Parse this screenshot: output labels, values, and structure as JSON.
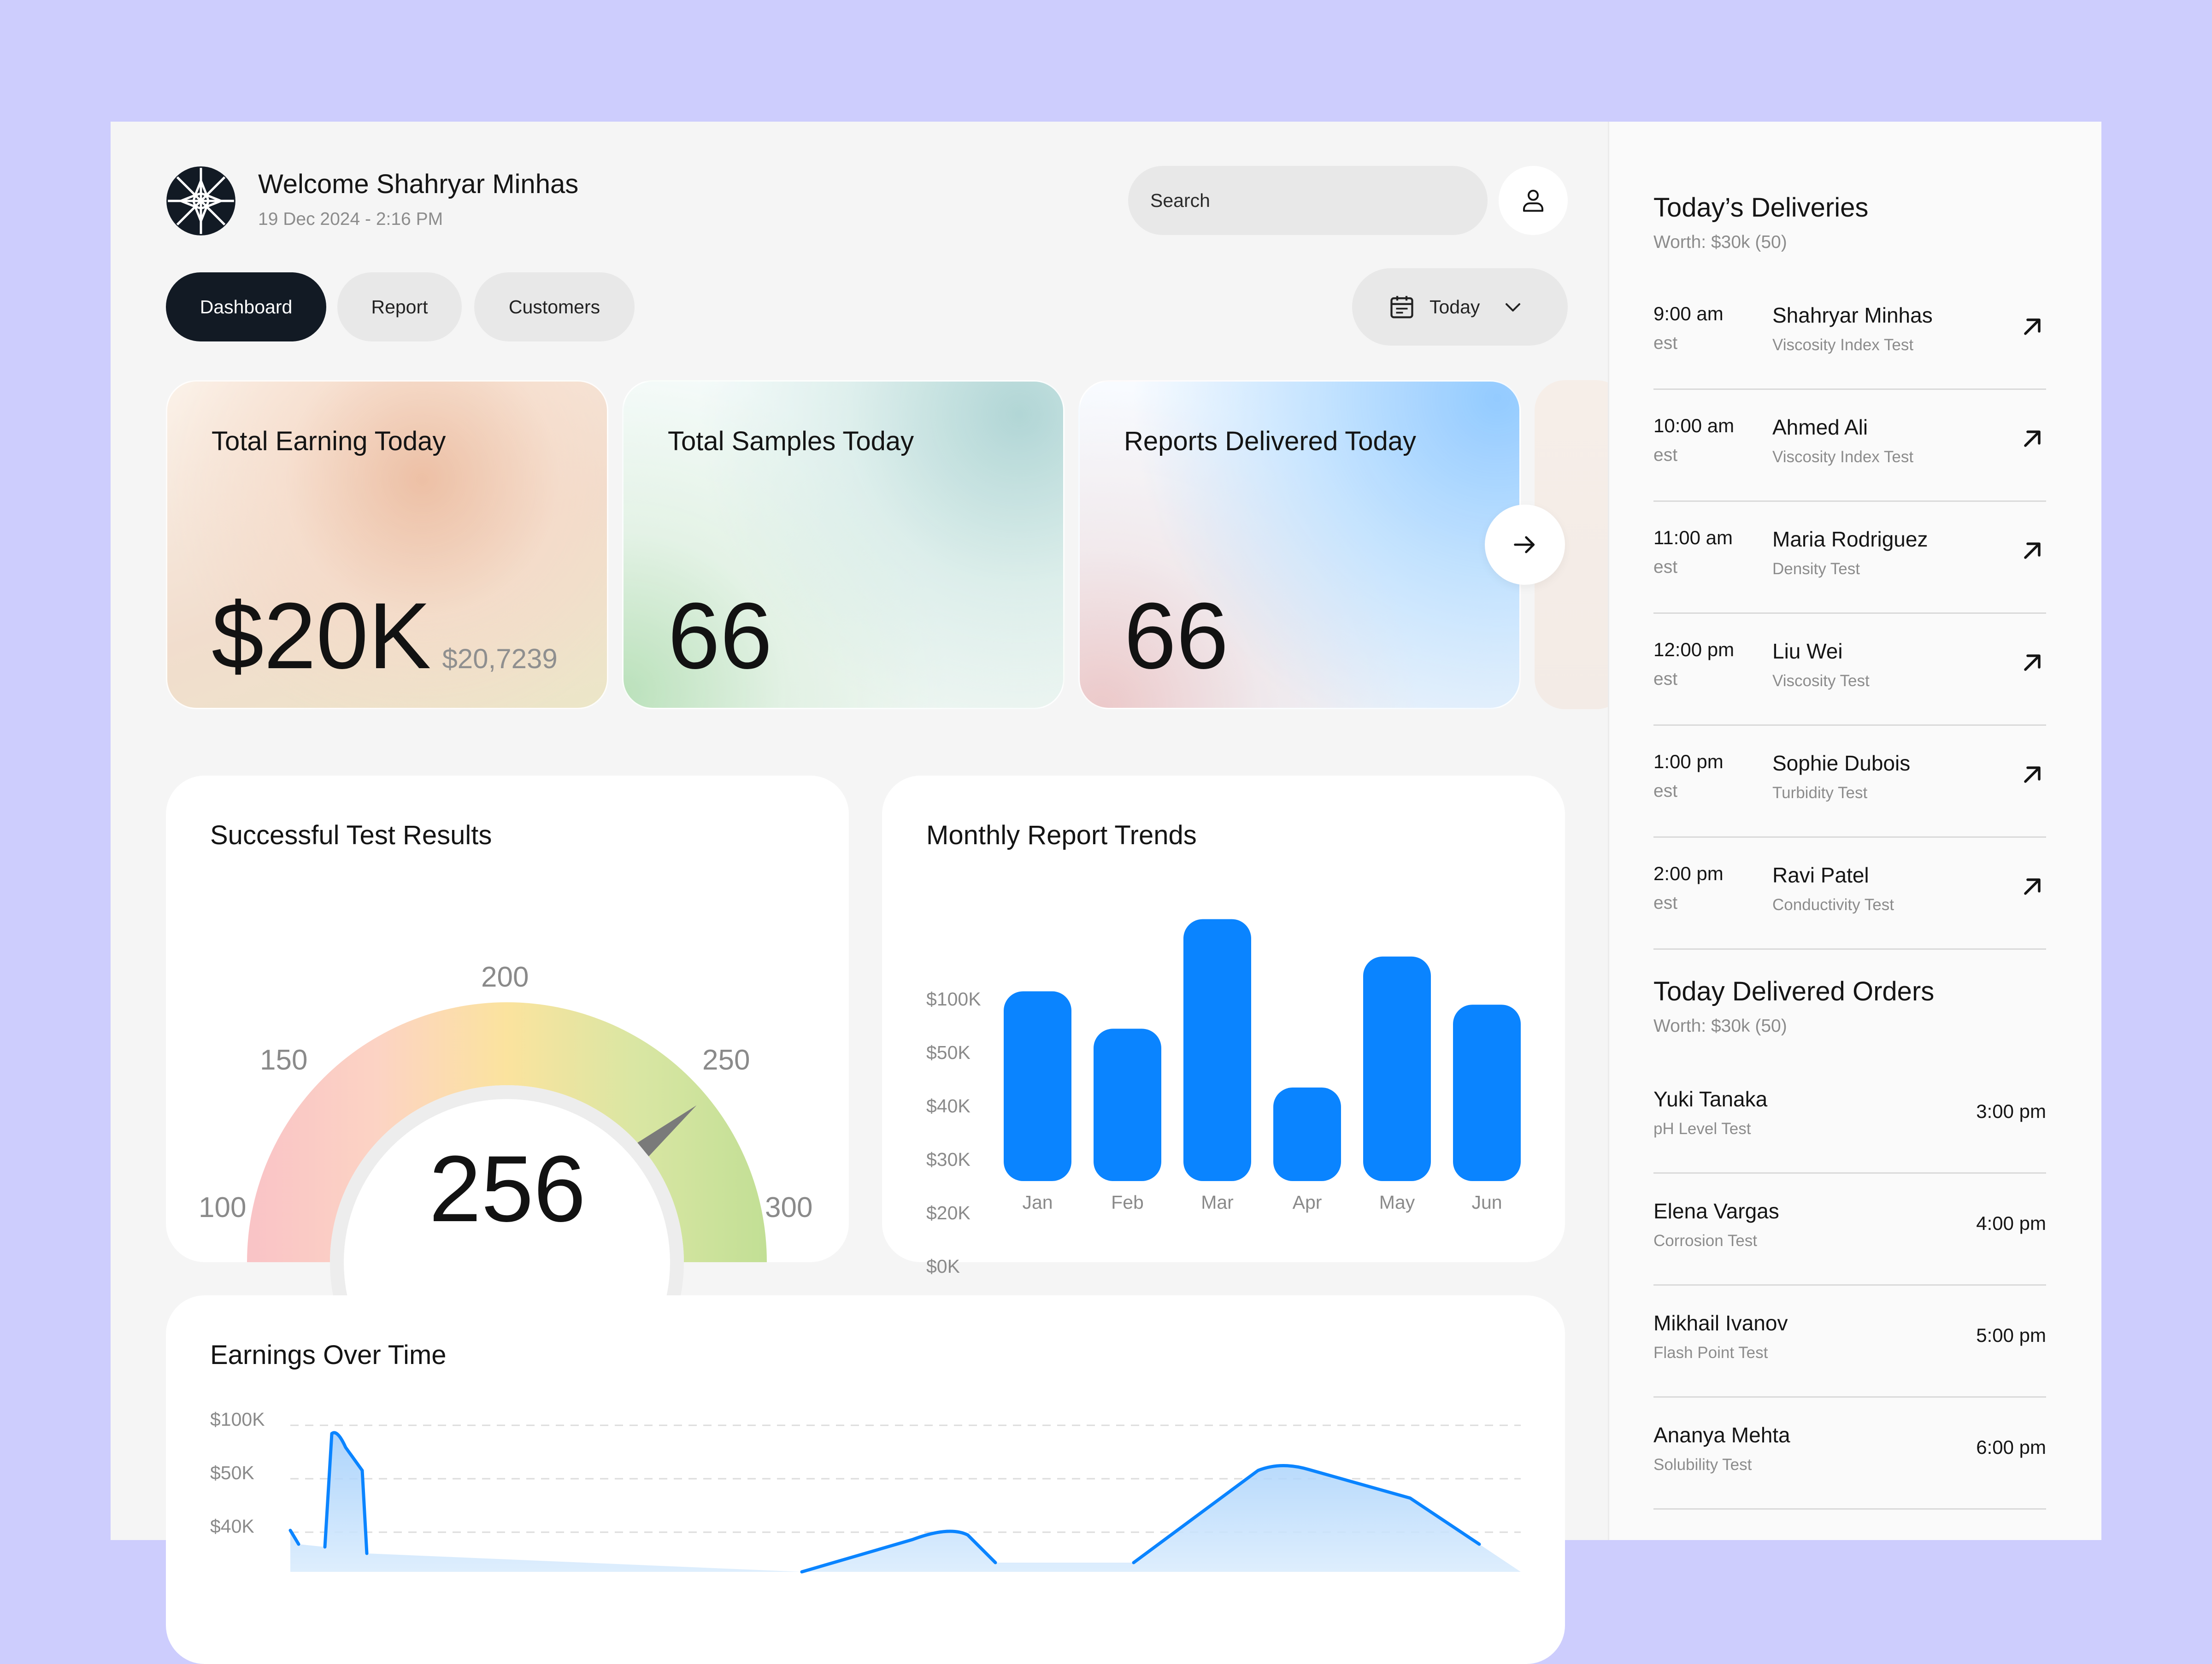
{
  "header": {
    "welcome": "Welcome Shahryar Minhas",
    "datetime": "19 Dec 2024 - 2:16 PM",
    "search_placeholder": "Search",
    "user_icon": "user-icon",
    "logo_icon": "star-logo"
  },
  "tabs": [
    {
      "label": "Dashboard",
      "active": true
    },
    {
      "label": "Report",
      "active": false
    },
    {
      "label": "Customers",
      "active": false
    }
  ],
  "date_filter": {
    "label": "Today",
    "icon": "calendar-icon"
  },
  "stats": [
    {
      "title": "Total Earning Today",
      "value": "$20K",
      "sub": "$20,7239"
    },
    {
      "title": "Total Samples Today",
      "value": "66"
    },
    {
      "title": "Reports Delivered Today",
      "value": "66"
    }
  ],
  "gauge": {
    "title": "Successful Test Results",
    "value": "256",
    "ticks": [
      "100",
      "150",
      "200",
      "250",
      "300"
    ],
    "min": 100,
    "max": 300,
    "needle": 256
  },
  "colors": {
    "accent": "#0a84ff",
    "dark": "#121a24",
    "gauge_red": "#f9c6c6",
    "gauge_yellow": "#fbe39b",
    "gauge_green": "#c4e09a"
  },
  "chart_data": [
    {
      "type": "bar",
      "title": "Monthly Report Trends",
      "categories": [
        "Jan",
        "Feb",
        "Mar",
        "Apr",
        "May",
        "Jun"
      ],
      "y_ticks": [
        "$100K",
        "$50K",
        "$40K",
        "$30K",
        "$20K",
        "$0K"
      ],
      "values_in_tick_steps": [
        3.55,
        2.85,
        4.9,
        1.75,
        4.2,
        3.3
      ],
      "grid": false
    },
    {
      "type": "area",
      "title": "Earnings Over Time",
      "y_ticks": [
        "$100K",
        "$50K",
        "$40K"
      ],
      "grid": true
    }
  ],
  "deliveries": {
    "title": "Today’s Deliveries",
    "worth": "Worth: $30k (50)",
    "items": [
      {
        "time": "9:00 am",
        "tz": "est",
        "name": "Shahryar Minhas",
        "test": "Viscosity Index Test"
      },
      {
        "time": "10:00 am",
        "tz": "est",
        "name": "Ahmed Ali",
        "test": "Viscosity Index Test"
      },
      {
        "time": "11:00 am",
        "tz": "est",
        "name": "Maria Rodriguez",
        "test": "Density Test"
      },
      {
        "time": "12:00 pm",
        "tz": "est",
        "name": "Liu Wei",
        "test": "Viscosity Test"
      },
      {
        "time": "1:00 pm",
        "tz": "est",
        "name": "Sophie Dubois",
        "test": "Turbidity Test"
      },
      {
        "time": "2:00 pm",
        "tz": "est",
        "name": "Ravi Patel",
        "test": "Conductivity Test"
      }
    ]
  },
  "orders": {
    "title": "Today Delivered Orders",
    "worth": "Worth: $30k (50)",
    "items": [
      {
        "name": "Yuki Tanaka",
        "test": "pH Level Test",
        "time": "3:00 pm"
      },
      {
        "name": "Elena Vargas",
        "test": "Corrosion Test",
        "time": "4:00 pm"
      },
      {
        "name": "Mikhail Ivanov",
        "test": "Flash Point Test",
        "time": "5:00 pm"
      },
      {
        "name": "Ananya Mehta",
        "test": "Solubility Test",
        "time": "6:00 pm"
      }
    ]
  }
}
